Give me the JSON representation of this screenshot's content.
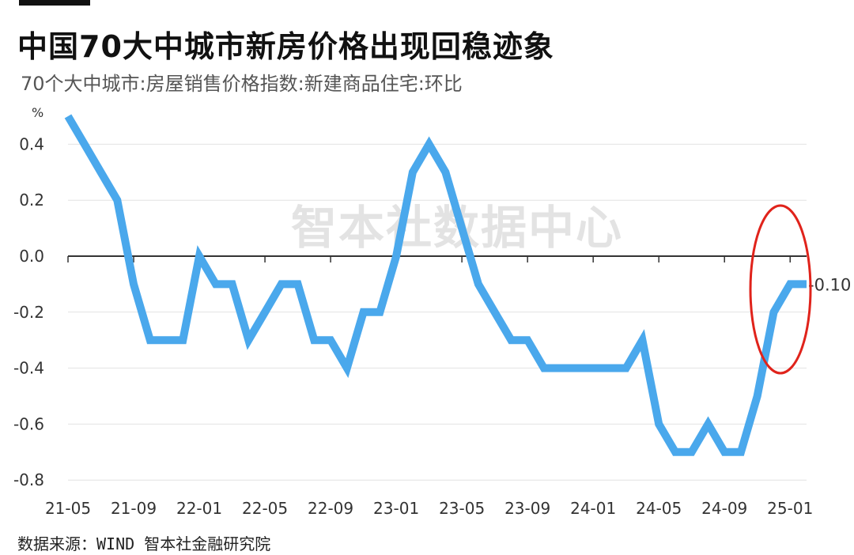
{
  "header": {
    "title": "中国70大中城市新房价格出现回稳迹象",
    "subtitle": "70个大中城市:房屋销售价格指数:新建商品住宅:环比"
  },
  "footer": {
    "source": "数据来源：WIND 智本社金融研究院"
  },
  "watermark": "智本社数据中心",
  "colors": {
    "line": "#4aa8ec",
    "highlight": "#e0231b",
    "grid": "#e2e2e2",
    "axis": "#333333"
  },
  "chart_data": {
    "type": "line",
    "unit": "%",
    "ylim": [
      -0.8,
      0.5
    ],
    "yticks": [
      0.4,
      0.2,
      0.0,
      -0.2,
      -0.4,
      -0.6,
      -0.8
    ],
    "ytick_labels": [
      "0.4",
      "0.2",
      "0.0",
      "-0.2",
      "-0.4",
      "-0.6",
      "-0.8"
    ],
    "xtick_labels": [
      "21-05",
      "21-09",
      "22-01",
      "22-05",
      "22-09",
      "23-01",
      "23-05",
      "23-09",
      "24-01",
      "24-05",
      "24-09",
      "25-01"
    ],
    "grid": true,
    "start_month": "2021-05",
    "series": [
      {
        "values": [
          0.5,
          0.4,
          0.3,
          0.2,
          -0.1,
          -0.3,
          -0.3,
          -0.3,
          0.0,
          -0.1,
          -0.1,
          -0.3,
          -0.2,
          -0.1,
          -0.1,
          -0.3,
          -0.3,
          -0.4,
          -0.2,
          -0.2,
          0.0,
          0.3,
          0.4,
          0.3,
          0.1,
          -0.1,
          -0.2,
          -0.3,
          -0.3,
          -0.4,
          -0.4,
          -0.4,
          -0.4,
          -0.4,
          -0.4,
          -0.3,
          -0.6,
          -0.7,
          -0.7,
          -0.6,
          -0.7,
          -0.7,
          -0.5,
          -0.2,
          -0.1,
          -0.1
        ]
      }
    ],
    "end_label": "-0.10",
    "annotation": "red ellipse around last three months"
  }
}
